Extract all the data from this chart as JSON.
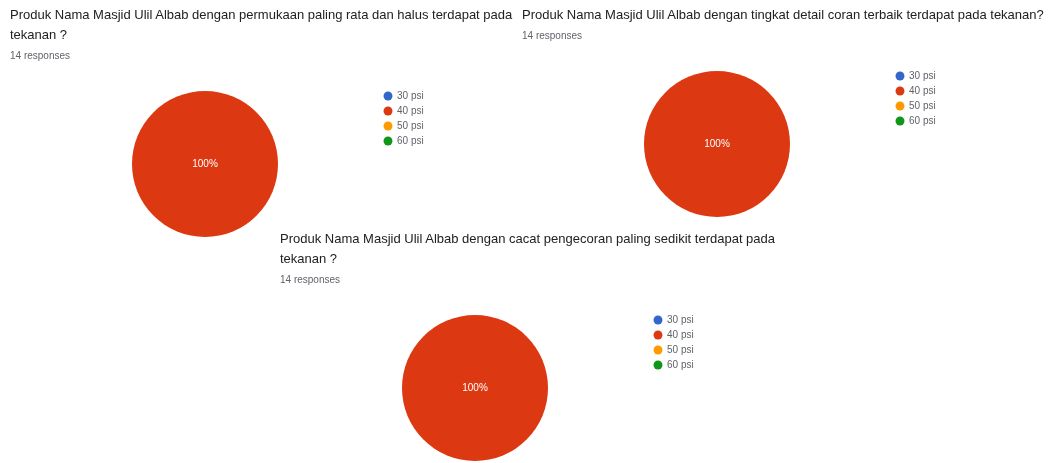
{
  "chart_data": [
    {
      "type": "pie",
      "title": "Produk Nama Masjid Ulil Albab dengan permukaan paling rata dan halus terdapat pada tekanan ?",
      "subtitle": "14 responses",
      "categories": [
        "30 psi",
        "40 psi",
        "50 psi",
        "60 psi"
      ],
      "values": [
        0,
        100,
        0,
        0
      ],
      "colors": [
        "#3366cc",
        "#dc3912",
        "#ff9900",
        "#109618"
      ],
      "value_labels": [
        null,
        "100%",
        null,
        null
      ],
      "legend": "right"
    },
    {
      "type": "pie",
      "title": "Produk Nama Masjid Ulil Albab dengan tingkat detail coran terbaik terdapat pada tekanan?",
      "subtitle": "14 responses",
      "categories": [
        "30 psi",
        "40 psi",
        "50 psi",
        "60 psi"
      ],
      "values": [
        0,
        100,
        0,
        0
      ],
      "colors": [
        "#3366cc",
        "#dc3912",
        "#ff9900",
        "#109618"
      ],
      "value_labels": [
        null,
        "100%",
        null,
        null
      ],
      "legend": "right"
    },
    {
      "type": "pie",
      "title": "Produk Nama Masjid Ulil Albab dengan cacat pengecoran paling sedikit terdapat pada tekanan ?",
      "subtitle": "14 responses",
      "categories": [
        "30 psi",
        "40 psi",
        "50 psi",
        "60 psi"
      ],
      "values": [
        0,
        100,
        0,
        0
      ],
      "colors": [
        "#3366cc",
        "#dc3912",
        "#ff9900",
        "#109618"
      ],
      "value_labels": [
        null,
        "100%",
        null,
        null
      ],
      "legend": "right"
    }
  ]
}
